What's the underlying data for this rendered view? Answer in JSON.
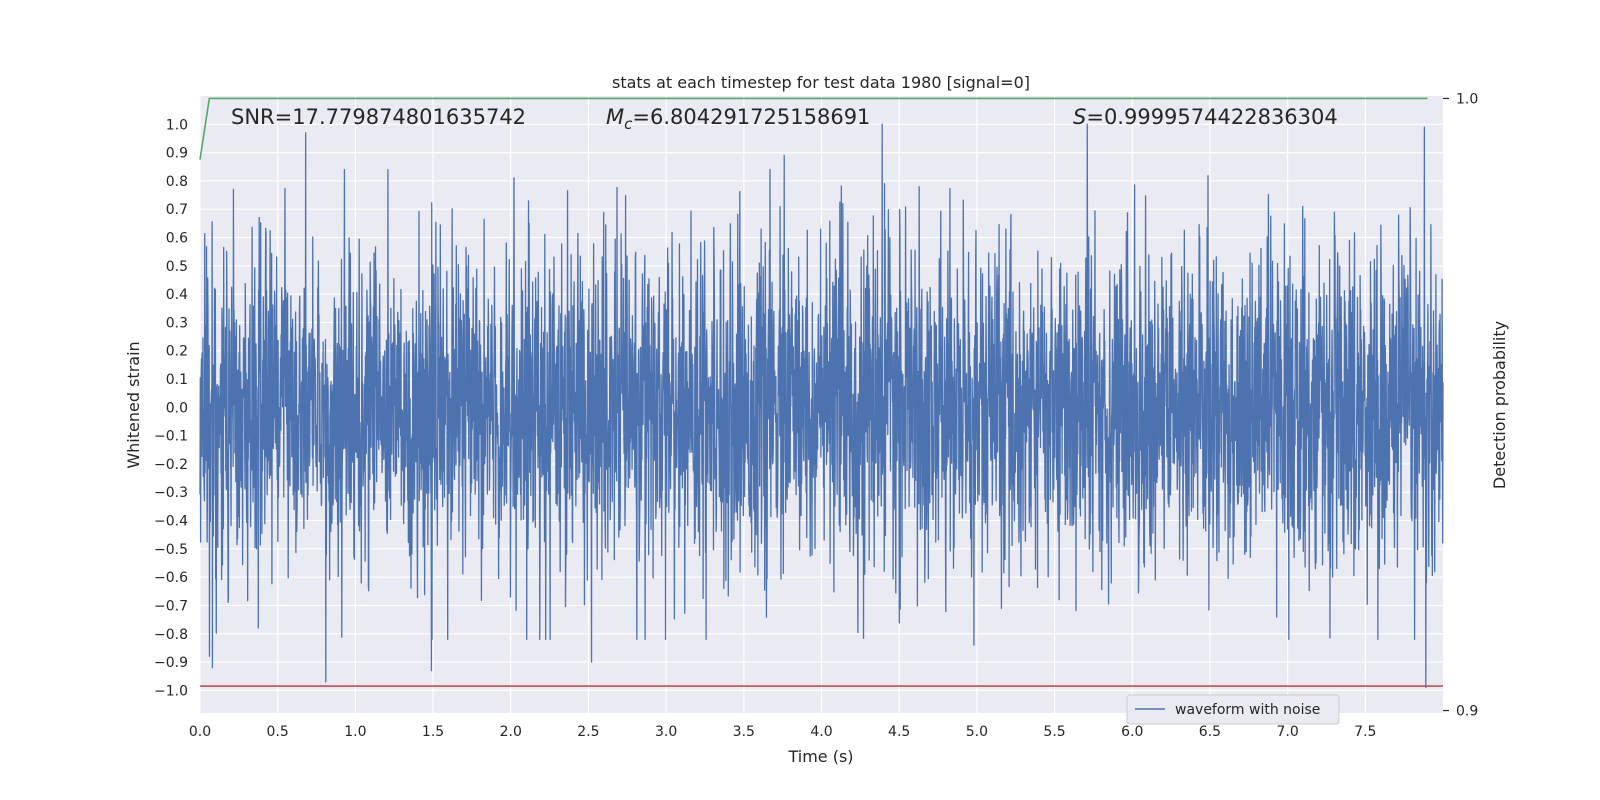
{
  "chart_data": {
    "type": "line",
    "title": "stats at each timestep for test data 1980 [signal=0]",
    "xlabel": "Time (s)",
    "ylabel": "Whitened strain",
    "y2label": "Detection probability",
    "xlim": [
      0.0,
      8.0
    ],
    "ylim": [
      -1.08,
      1.1
    ],
    "y2lim": [
      0.8996,
      1.0004
    ],
    "x_ticks": [
      "0.0",
      "0.5",
      "1.0",
      "1.5",
      "2.0",
      "2.5",
      "3.0",
      "3.5",
      "4.0",
      "4.5",
      "5.0",
      "5.5",
      "6.0",
      "6.5",
      "7.0",
      "7.5"
    ],
    "y_ticks": [
      "1.0",
      "0.9",
      "0.8",
      "0.7",
      "0.6",
      "0.5",
      "0.4",
      "0.3",
      "0.2",
      "0.1",
      "0.0",
      "−0.1",
      "−0.2",
      "−0.3",
      "−0.4",
      "−0.5",
      "−0.6",
      "−0.7",
      "−0.8",
      "−0.9",
      "−1.0"
    ],
    "y2_ticks": [
      "1.0",
      "0.9"
    ],
    "grid": true,
    "legend": {
      "position": "lower-right",
      "entries": [
        "waveform with noise"
      ]
    },
    "annotations": {
      "snr": "SNR=17.779874801635742",
      "mc_symbol": "M",
      "mc_sub": "c",
      "mc_value": "=6.804291725158691",
      "s_symbol": "S",
      "s_value": "=0.9999574422836304"
    },
    "series": [
      {
        "name": "waveform with noise",
        "color": "#4c72b0",
        "kind": "noise",
        "x_range": [
          0.0,
          8.0
        ],
        "typical_amplitude": 0.28,
        "peaks": [
          {
            "x": 0.68,
            "y": 0.97
          },
          {
            "x": 0.93,
            "y": 0.84
          },
          {
            "x": 3.76,
            "y": 0.89
          },
          {
            "x": 4.39,
            "y": 1.0
          },
          {
            "x": 5.71,
            "y": 1.0
          },
          {
            "x": 7.88,
            "y": 0.99
          },
          {
            "x": 0.81,
            "y": -0.97
          },
          {
            "x": 1.49,
            "y": -0.93
          },
          {
            "x": 2.52,
            "y": -0.9
          },
          {
            "x": 4.98,
            "y": -0.84
          },
          {
            "x": 7.58,
            "y": -0.82
          },
          {
            "x": 7.89,
            "y": -0.99
          },
          {
            "x": 0.06,
            "y": -0.88
          },
          {
            "x": 0.08,
            "y": -0.92
          }
        ]
      },
      {
        "name": "detection probability",
        "color": "#55a868",
        "axis": "right",
        "x": [
          0.0,
          0.06,
          7.9
        ],
        "y": [
          0.99,
          1.0,
          1.0
        ]
      },
      {
        "name": "threshold",
        "color": "#c44e52",
        "axis": "left",
        "x": [
          0.0,
          8.0
        ],
        "y": [
          -0.985,
          -0.985
        ]
      }
    ]
  }
}
